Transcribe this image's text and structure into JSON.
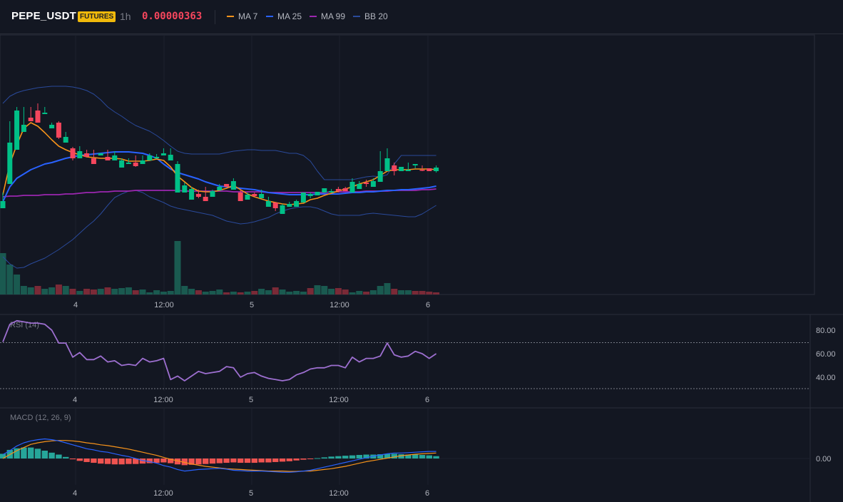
{
  "header": {
    "symbol": "PEPE_USDT",
    "badge": "FUTURES",
    "timeframe": "1h",
    "price": "0.00000363",
    "legend": [
      {
        "label": "MA 7",
        "color": "#f7931a"
      },
      {
        "label": "MA 25",
        "color": "#2962ff"
      },
      {
        "label": "MA 99",
        "color": "#9c27b0"
      },
      {
        "label": "BB 20",
        "color": "#2a4a9b"
      }
    ]
  },
  "colors": {
    "up": "#00c087",
    "down": "#f6465d",
    "background": "#131722",
    "grid": "#1e222d"
  },
  "chart_data": [
    {
      "type": "candlestick",
      "title": "PEPE_USDT 1h",
      "x_ticks": [
        "4",
        "12:00",
        "5",
        "12:00",
        "6"
      ],
      "ohlc": [
        [
          292,
          282,
          270,
          286
        ],
        [
          258,
          200,
          170,
          203
        ],
        [
          210,
          155,
          150,
          160
        ],
        [
          185,
          175,
          150,
          168
        ],
        [
          165,
          170,
          150,
          160
        ],
        [
          155,
          172,
          145,
          168
        ],
        [
          160,
          158,
          150,
          155
        ],
        [
          180,
          175,
          172,
          178
        ],
        [
          172,
          193,
          170,
          195
        ],
        [
          200,
          192,
          185,
          195
        ],
        [
          208,
          222,
          206,
          225
        ],
        [
          222,
          212,
          205,
          214
        ],
        [
          215,
          220,
          210,
          218
        ],
        [
          222,
          230,
          210,
          228
        ],
        [
          218,
          215,
          215,
          217
        ],
        [
          220,
          225,
          210,
          223
        ],
        [
          225,
          218,
          212,
          216
        ],
        [
          235,
          225,
          222,
          232
        ],
        [
          230,
          228,
          222,
          230
        ],
        [
          228,
          233,
          218,
          234
        ],
        [
          230,
          225,
          218,
          226
        ],
        [
          225,
          218,
          215,
          220
        ],
        [
          222,
          220,
          216,
          218
        ],
        [
          218,
          215,
          208,
          216
        ],
        [
          225,
          217,
          208,
          218
        ],
        [
          270,
          230,
          226,
          230
        ],
        [
          270,
          260,
          256,
          268
        ],
        [
          280,
          265,
          262,
          276
        ],
        [
          272,
          276,
          266,
          278
        ],
        [
          276,
          282,
          262,
          274
        ],
        [
          276,
          268,
          266,
          272
        ],
        [
          267,
          262,
          258,
          264
        ],
        [
          258,
          262,
          262,
          262
        ],
        [
          266,
          254,
          250,
          252
        ],
        [
          270,
          282,
          265,
          280
        ],
        [
          280,
          273,
          270,
          280
        ],
        [
          272,
          275,
          270,
          276
        ],
        [
          278,
          272,
          266,
          276
        ],
        [
          290,
          282,
          276,
          290
        ],
        [
          284,
          292,
          284,
          296
        ],
        [
          300,
          288,
          286,
          294
        ],
        [
          290,
          286,
          283,
          288
        ],
        [
          290,
          282,
          280,
          284
        ],
        [
          284,
          270,
          270,
          276
        ],
        [
          275,
          272,
          270,
          278
        ],
        [
          274,
          269,
          269,
          270
        ],
        [
          270,
          264,
          266,
          270
        ],
        [
          270,
          268,
          265,
          270
        ],
        [
          265,
          268,
          262,
          270
        ],
        [
          264,
          268,
          262,
          266
        ],
        [
          270,
          255,
          250,
          268
        ],
        [
          265,
          258,
          254,
          262
        ],
        [
          256,
          258,
          252,
          262
        ],
        [
          262,
          254,
          250,
          262
        ],
        [
          255,
          240,
          212,
          240
        ],
        [
          240,
          222,
          208,
          228
        ],
        [
          232,
          240,
          228,
          246
        ],
        [
          240,
          234,
          234,
          234
        ],
        [
          240,
          238,
          228,
          236
        ],
        [
          232,
          230,
          230,
          236
        ],
        [
          238,
          238,
          232,
          240
        ],
        [
          236,
          240,
          236,
          238
        ],
        [
          240,
          235,
          232,
          242
        ]
      ],
      "volume": [
        58,
        42,
        28,
        12,
        10,
        12,
        8,
        10,
        14,
        12,
        8,
        5,
        8,
        7,
        8,
        10,
        8,
        9,
        10,
        6,
        7,
        3,
        6,
        4,
        5,
        75,
        12,
        8,
        6,
        4,
        5,
        7,
        3,
        4,
        3,
        4,
        5,
        8,
        6,
        10,
        7,
        4,
        5,
        4,
        9,
        13,
        12,
        8,
        9,
        7,
        3,
        5,
        4,
        6,
        12,
        16,
        8,
        6,
        6,
        5,
        5,
        4,
        3
      ],
      "ma7": [
        273,
        230,
        203,
        180,
        172,
        177,
        186,
        196,
        205,
        210,
        214,
        217,
        220,
        221,
        222,
        222,
        222,
        223,
        226,
        226,
        226,
        225,
        223,
        225,
        234,
        247,
        255,
        263,
        268,
        269,
        269,
        267,
        264,
        260,
        266,
        272,
        276,
        279,
        282,
        284,
        286,
        287,
        286,
        285,
        280,
        278,
        274,
        271,
        268,
        265,
        262,
        258,
        255,
        252,
        246,
        240,
        238,
        238,
        238,
        237,
        237,
        237,
        238
      ],
      "ma25": [
        283,
        262,
        250,
        244,
        238,
        234,
        230,
        228,
        225,
        222,
        220,
        218,
        217,
        216,
        215,
        214,
        213,
        213,
        213,
        214,
        215,
        218,
        222,
        230,
        237,
        242,
        245,
        248,
        251,
        255,
        258,
        261,
        262,
        263,
        264,
        265,
        266,
        268,
        270,
        271,
        272,
        273,
        273,
        273,
        273,
        272,
        272,
        272,
        272,
        271,
        270,
        270,
        269,
        269,
        268,
        267,
        267,
        266,
        266,
        265,
        264,
        263,
        261
      ],
      "ma99": [
        276,
        275,
        275,
        274,
        274,
        274,
        273,
        273,
        273,
        272,
        272,
        271,
        270,
        270,
        269,
        269,
        268,
        268,
        268,
        267,
        267,
        267,
        267,
        267,
        267,
        267,
        268,
        268,
        268,
        268,
        268,
        268,
        268,
        269,
        269,
        269,
        269,
        269,
        270,
        270,
        270,
        270,
        270,
        270,
        270,
        270,
        270,
        269,
        269,
        269,
        269,
        269,
        268,
        268,
        268,
        268,
        267,
        267,
        267,
        267,
        266,
        266,
        265
      ],
      "bb_upper": [
        145,
        135,
        130,
        127,
        125,
        123,
        122,
        121,
        121,
        121,
        122,
        124,
        127,
        132,
        140,
        150,
        157,
        163,
        170,
        176,
        180,
        184,
        190,
        197,
        205,
        212,
        215,
        216,
        216,
        216,
        216,
        216,
        214,
        212,
        211,
        210,
        210,
        211,
        211,
        211,
        213,
        215,
        215,
        218,
        226,
        240,
        252,
        252,
        252,
        252,
        252,
        250,
        248,
        247,
        248,
        245,
        230,
        218,
        218,
        218,
        218,
        218,
        218
      ],
      "bb_lower": [
        360,
        370,
        376,
        375,
        370,
        366,
        362,
        356,
        350,
        343,
        336,
        327,
        318,
        310,
        300,
        288,
        277,
        272,
        268,
        267,
        270,
        276,
        280,
        284,
        289,
        292,
        294,
        296,
        298,
        300,
        302,
        306,
        310,
        312,
        314,
        313,
        311,
        308,
        305,
        300,
        296,
        293,
        291,
        290,
        290,
        292,
        296,
        300,
        302,
        302,
        302,
        302,
        300,
        299,
        300,
        301,
        302,
        303,
        304,
        304,
        300,
        294,
        288
      ]
    },
    {
      "type": "line",
      "title": "RSI (14)",
      "x_ticks": [
        "4",
        "12:00",
        "5",
        "12:00",
        "6"
      ],
      "y_ticks": [
        "80.00",
        "60.00",
        "40.00"
      ],
      "overbought": 70,
      "oversold": 30,
      "values": [
        70,
        85,
        88,
        87,
        86,
        86,
        85,
        80,
        69,
        69,
        57,
        61,
        55,
        55,
        58,
        53,
        54,
        50,
        51,
        50,
        56,
        53,
        54,
        56,
        38,
        41,
        37,
        41,
        45,
        43,
        44,
        45,
        49,
        48,
        40,
        43,
        44,
        41,
        39,
        38,
        37,
        38,
        42,
        44,
        47,
        48,
        48,
        50,
        50,
        48,
        57,
        53,
        56,
        56,
        58,
        69,
        59,
        57,
        58,
        62,
        60,
        56,
        60
      ]
    },
    {
      "type": "bar",
      "title": "MACD (12, 26, 9)",
      "x_ticks": [
        "4",
        "12:00",
        "5",
        "12:00",
        "6"
      ],
      "y_ticks": [
        "0.00"
      ],
      "histogram": [
        12,
        22,
        26,
        28,
        28,
        25,
        20,
        15,
        10,
        4,
        -2,
        -6,
        -9,
        -11,
        -13,
        -14,
        -15,
        -15,
        -14,
        -14,
        -13,
        -12,
        -11,
        -10,
        -12,
        -15,
        -17,
        -16,
        -15,
        -14,
        -13,
        -12,
        -11,
        -10,
        -11,
        -11,
        -11,
        -10,
        -10,
        -9,
        -8,
        -7,
        -5,
        -3,
        -1,
        1,
        3,
        5,
        6,
        7,
        8,
        9,
        10,
        10,
        11,
        12,
        12,
        11,
        10,
        10,
        9,
        8,
        6
      ],
      "macd": [
        10,
        20,
        32,
        40,
        45,
        48,
        50,
        48,
        45,
        40,
        35,
        30,
        25,
        22,
        18,
        16,
        12,
        8,
        5,
        0,
        -5,
        -8,
        -12,
        -18,
        -22,
        -28,
        -32,
        -30,
        -28,
        -27,
        -26,
        -25,
        -27,
        -30,
        -31,
        -32,
        -32,
        -32,
        -33,
        -34,
        -35,
        -35,
        -34,
        -32,
        -30,
        -26,
        -22,
        -18,
        -14,
        -10,
        -6,
        -2,
        2,
        6,
        9,
        12,
        14,
        14,
        15,
        16,
        17,
        18,
        18
      ],
      "signal": [
        0,
        10,
        20,
        28,
        36,
        40,
        43,
        45,
        46,
        46,
        45,
        43,
        40,
        38,
        35,
        33,
        30,
        27,
        24,
        20,
        16,
        12,
        8,
        3,
        -2,
        -6,
        -10,
        -14,
        -17,
        -20,
        -22,
        -24,
        -26,
        -27,
        -28,
        -29,
        -30,
        -31,
        -32,
        -32,
        -32,
        -33,
        -33,
        -32,
        -32,
        -30,
        -28,
        -26,
        -23,
        -20,
        -16,
        -12,
        -8,
        -5,
        -2,
        1,
        4,
        7,
        9,
        11,
        12,
        13,
        14
      ]
    }
  ]
}
